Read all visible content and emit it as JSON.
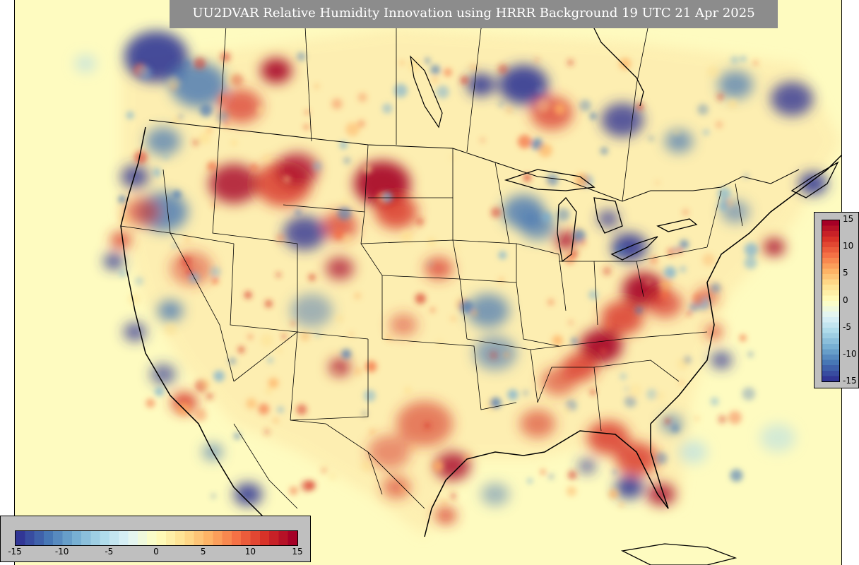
{
  "title": "UU2DVAR Relative Humidity Innovation using HRRR Background 19 UTC 21 Apr 2025",
  "variable": "Relative Humidity Innovation",
  "colormap": {
    "name": "RdYlBu_r",
    "colors": [
      "#313695",
      "#4575b4",
      "#74add1",
      "#abd9e9",
      "#e0f3f8",
      "#ffffbf",
      "#fee090",
      "#fdae61",
      "#f46d43",
      "#d73027",
      "#a50026"
    ],
    "range": [
      -15,
      15
    ]
  },
  "colorbar_bottom": {
    "orientation": "horizontal",
    "ticks": [
      "-15",
      "-10",
      "-5",
      "0",
      "5",
      "10",
      "15"
    ]
  },
  "colorbar_right": {
    "orientation": "vertical",
    "ticks": [
      "15",
      "10",
      "5",
      "0",
      "-5",
      "-10",
      "-15"
    ]
  },
  "colors": {
    "background_field": "#fefbc0",
    "title_bar": "#8c8c8c",
    "colorbar_panel": "#bfbfbf"
  }
}
